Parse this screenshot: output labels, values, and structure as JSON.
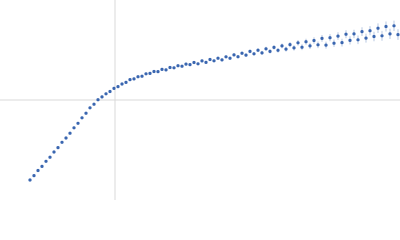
{
  "chart_data": {
    "type": "scatter",
    "xlim": [
      -115,
      285
    ],
    "ylim": [
      -100,
      100
    ],
    "xticks": [
      0
    ],
    "yticks": [
      0
    ],
    "grid": true,
    "tick_labels": false,
    "series": [
      {
        "color": "#3a66b0",
        "x": [
          -85,
          -81,
          -77,
          -73,
          -69,
          -65,
          -61,
          -57,
          -53,
          -49,
          -45,
          -41,
          -37,
          -33,
          -29,
          -25,
          -21,
          -17,
          -13,
          -9,
          -5,
          -1,
          3,
          7,
          11,
          15,
          19,
          23,
          27,
          31,
          35,
          39,
          43,
          47,
          51,
          55,
          59,
          63,
          67,
          71,
          75,
          79,
          83,
          87,
          91,
          95,
          99,
          103,
          107,
          111,
          115,
          119,
          123,
          127,
          131,
          135,
          139,
          143,
          147,
          151,
          155,
          159,
          163,
          167,
          171,
          175,
          179,
          183,
          187,
          191,
          195,
          199,
          203,
          207,
          211,
          215,
          219,
          223,
          227,
          231,
          235,
          239,
          243,
          247,
          251,
          255,
          259,
          263,
          267,
          271,
          275,
          279,
          283
        ],
        "values": [
          -80,
          -75.6,
          -70.5,
          -66.4,
          -61.3,
          -57.2,
          -52,
          -47.6,
          -42.3,
          -38,
          -33.2,
          -27.8,
          -23.3,
          -17.8,
          -13.2,
          -7.8,
          -4.2,
          0.3,
          3.1,
          6.2,
          8.5,
          11.6,
          13.4,
          16,
          17.6,
          20.4,
          21.1,
          23.3,
          23.8,
          26.2,
          26.6,
          28.5,
          28.4,
          30.6,
          30.1,
          32.5,
          32.2,
          34.3,
          33.8,
          35.9,
          35.4,
          37.5,
          36.2,
          39.1,
          37.6,
          40.5,
          39.2,
          41.8,
          40.1,
          43.2,
          41.8,
          45.1,
          43.3,
          46.8,
          44.9,
          48.6,
          46.2,
          49.8,
          47.1,
          51.2,
          48.6,
          52.6,
          49.7,
          54.1,
          50.9,
          55.4,
          52.1,
          57.2,
          52.8,
          58.3,
          54.1,
          59.5,
          55.2,
          61.6,
          54.9,
          62.3,
          56.8,
          63.9,
          57.4,
          65.8,
          59.6,
          66.1,
          60.2,
          68.4,
          61.9,
          69.3,
          63.5,
          71.8,
          64.2,
          73.5,
          66.1,
          74.2,
          65.4
        ],
        "errors": [
          0.6,
          0.6,
          0.6,
          0.6,
          0.6,
          0.6,
          0.6,
          0.6,
          0.6,
          0.6,
          0.6,
          0.6,
          0.6,
          0.6,
          0.6,
          0.6,
          0.6,
          0.6,
          0.6,
          0.6,
          0.6,
          0.6,
          0.7,
          0.7,
          0.7,
          0.7,
          0.7,
          0.8,
          0.8,
          0.8,
          0.8,
          0.8,
          0.9,
          0.9,
          0.9,
          0.9,
          1,
          1,
          1,
          1,
          1.1,
          1.1,
          1.1,
          1.2,
          1.2,
          1.2,
          1.3,
          1.3,
          1.4,
          1.4,
          1.5,
          1.5,
          1.6,
          1.6,
          1.7,
          1.8,
          1.8,
          1.9,
          2,
          2,
          2.1,
          2.2,
          2.3,
          2.4,
          2.5,
          2.6,
          2.7,
          2.8,
          2.9,
          3,
          3.1,
          3.2,
          3.3,
          3.4,
          3.5,
          3.6,
          3.7,
          3.8,
          3.9,
          4,
          4.1,
          4.2,
          4.3,
          4.4,
          4.5,
          4.6,
          4.7,
          4.8,
          4.9,
          5,
          5.1,
          5.2,
          5.3
        ]
      }
    ]
  }
}
